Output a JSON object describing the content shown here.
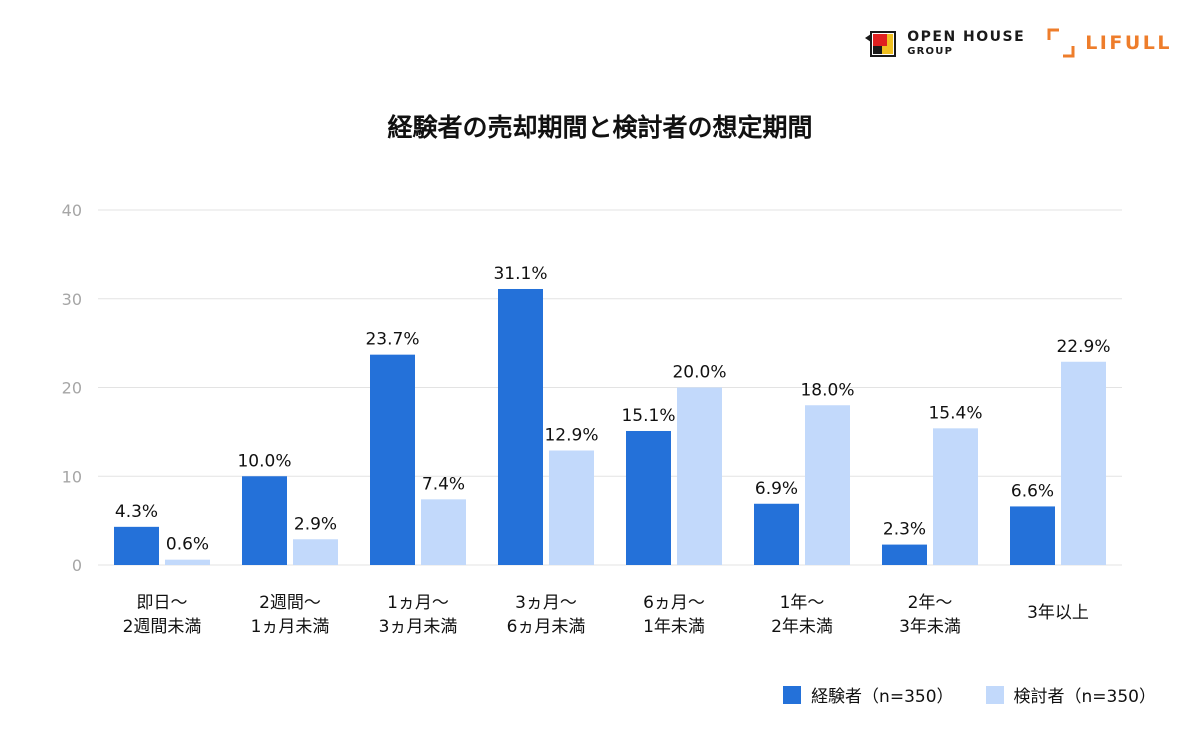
{
  "logos": {
    "openhouse_line1": "OPEN HOUSE",
    "openhouse_line2": "GROUP",
    "lifull": "LIFULL"
  },
  "colors": {
    "series1": "#2471d9",
    "series2": "#c2d9fb",
    "grid": "#e3e3e3",
    "tick": "#a6a6a6",
    "lifull_orange": "#ee7d2b"
  },
  "chart_data": {
    "type": "bar",
    "title": "経験者の売却期間と検討者の想定期間",
    "ylim": [
      0,
      40
    ],
    "yticks": [
      "0",
      "10",
      "20",
      "30",
      "40"
    ],
    "grid": true,
    "legend_position": "bottom-right",
    "categories": [
      [
        "即日～",
        "2週間未満"
      ],
      [
        "2週間～",
        "1ヵ月未満"
      ],
      [
        "1ヵ月～",
        "3ヵ月未満"
      ],
      [
        "3ヵ月～",
        "6ヵ月未満"
      ],
      [
        "6ヵ月～",
        "1年未満"
      ],
      [
        "1年～",
        "2年未満"
      ],
      [
        "2年～",
        "3年未満"
      ],
      [
        "3年以上"
      ]
    ],
    "series": [
      {
        "name": "経験者（n=350）",
        "values": [
          4.3,
          10.0,
          23.7,
          31.1,
          15.1,
          6.9,
          2.3,
          6.6
        ],
        "labels": [
          "4.3%",
          "10.0%",
          "23.7%",
          "31.1%",
          "15.1%",
          "6.9%",
          "2.3%",
          "6.6%"
        ]
      },
      {
        "name": "検討者（n=350）",
        "values": [
          0.6,
          2.9,
          7.4,
          12.9,
          20.0,
          18.0,
          15.4,
          22.9
        ],
        "labels": [
          "0.6%",
          "2.9%",
          "7.4%",
          "12.9%",
          "20.0%",
          "18.0%",
          "15.4%",
          "22.9%"
        ]
      }
    ]
  }
}
